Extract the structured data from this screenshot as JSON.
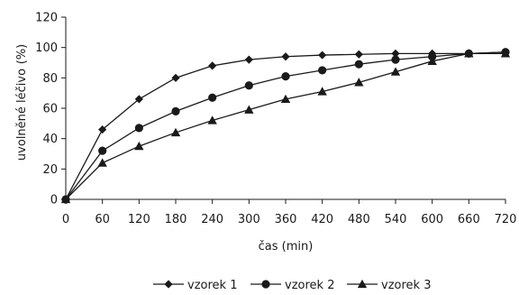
{
  "chart_data": {
    "type": "line",
    "xlabel": "čas (min)",
    "ylabel": "uvolněné léčivo",
    "yunit": "(%)",
    "xlim": [
      0,
      720
    ],
    "ylim": [
      0,
      120
    ],
    "xticks": [
      0,
      60,
      120,
      180,
      240,
      300,
      360,
      420,
      480,
      540,
      600,
      660,
      720
    ],
    "yticks": [
      0,
      20,
      40,
      60,
      80,
      100,
      120
    ],
    "grid": false,
    "legend_position": "bottom",
    "x": [
      0,
      60,
      120,
      180,
      240,
      300,
      360,
      420,
      480,
      540,
      600,
      660,
      720
    ],
    "series": [
      {
        "name": "vzorek 1",
        "marker": "diamond",
        "values": [
          0,
          46,
          66,
          80,
          88,
          92,
          94,
          95,
          95.5,
          96,
          96,
          96,
          97
        ]
      },
      {
        "name": "vzorek 2",
        "marker": "circle",
        "values": [
          0,
          32,
          47,
          58,
          67,
          75,
          81,
          85,
          89,
          92,
          94,
          96,
          97
        ]
      },
      {
        "name": "vzorek 3",
        "marker": "triangle",
        "values": [
          0,
          24,
          35,
          44,
          52,
          59,
          66,
          71,
          77,
          84,
          91,
          96,
          96
        ]
      }
    ],
    "colors": {
      "line": "#1a1a1a",
      "marker": "#1a1a1a"
    }
  }
}
